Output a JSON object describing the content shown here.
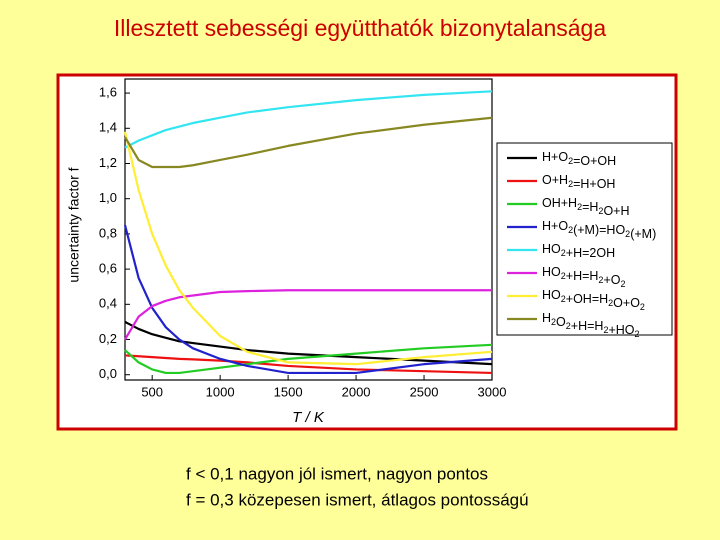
{
  "title": "Illesztett sebességi együtthatók bizonytalansága",
  "chart_data": {
    "type": "line",
    "y_label": "uncertainty factor f",
    "x_label": "T / K",
    "xlim": [
      300,
      3000
    ],
    "xticks": [
      500,
      1000,
      1500,
      2000,
      2500,
      3000
    ],
    "ylim": [
      -0.03,
      1.68
    ],
    "yticks": [
      {
        "value": 0,
        "label": "0,0"
      },
      {
        "value": 0.2,
        "label": "0,2"
      },
      {
        "value": 0.4,
        "label": "0,4"
      },
      {
        "value": 0.6,
        "label": "0,6"
      },
      {
        "value": 0.8,
        "label": "0,8"
      },
      {
        "value": 1.0,
        "label": "1,0"
      },
      {
        "value": 1.2,
        "label": "1,2"
      },
      {
        "value": 1.4,
        "label": "1,4"
      },
      {
        "value": 1.6,
        "label": "1,6"
      }
    ],
    "x": [
      300,
      400,
      500,
      600,
      700,
      800,
      1000,
      1200,
      1500,
      2000,
      2500,
      3000
    ],
    "series": [
      {
        "name": "H+O2=O+OH",
        "color": "#000000",
        "values": [
          0.3,
          0.26,
          0.23,
          0.21,
          0.19,
          0.18,
          0.16,
          0.14,
          0.12,
          0.1,
          0.08,
          0.06
        ]
      },
      {
        "name": "O+H2=H+OH",
        "color": "#ee1111",
        "values": [
          0.11,
          0.105,
          0.1,
          0.095,
          0.09,
          0.087,
          0.08,
          0.07,
          0.05,
          0.03,
          0.02,
          0.01
        ]
      },
      {
        "name": "OH+H2=H2O+H",
        "color": "#22cc22",
        "values": [
          0.14,
          0.07,
          0.03,
          0.01,
          0.01,
          0.02,
          0.04,
          0.06,
          0.09,
          0.12,
          0.15,
          0.17
        ]
      },
      {
        "name": "H+O2(+M)=HO2(+M)",
        "color": "#2222cc",
        "values": [
          0.85,
          0.55,
          0.38,
          0.27,
          0.2,
          0.15,
          0.09,
          0.05,
          0.01,
          0.01,
          0.06,
          0.09
        ]
      },
      {
        "name": "HO2+H=2OH",
        "color": "#33e5f0",
        "values": [
          1.29,
          1.33,
          1.36,
          1.39,
          1.41,
          1.43,
          1.46,
          1.49,
          1.52,
          1.56,
          1.59,
          1.61
        ]
      },
      {
        "name": "HO2+H=H2+O2",
        "color": "#dd22dd",
        "values": [
          0.2,
          0.33,
          0.39,
          0.42,
          0.44,
          0.45,
          0.47,
          0.475,
          0.48,
          0.48,
          0.48,
          0.48
        ]
      },
      {
        "name": "HO2+OH=H2O+O2",
        "color": "#ffee33",
        "values": [
          1.38,
          1.05,
          0.8,
          0.62,
          0.48,
          0.38,
          0.22,
          0.13,
          0.07,
          0.06,
          0.1,
          0.13
        ]
      },
      {
        "name": "H2O2+H=H2+HO2",
        "color": "#888822",
        "values": [
          1.35,
          1.22,
          1.18,
          1.18,
          1.18,
          1.19,
          1.22,
          1.25,
          1.3,
          1.37,
          1.42,
          1.46
        ]
      }
    ]
  },
  "notes": [
    "f < 0,1 nagyon jól ismert, nagyon pontos",
    "f = 0,3 közepesen ismert, átlagos pontosságú"
  ]
}
